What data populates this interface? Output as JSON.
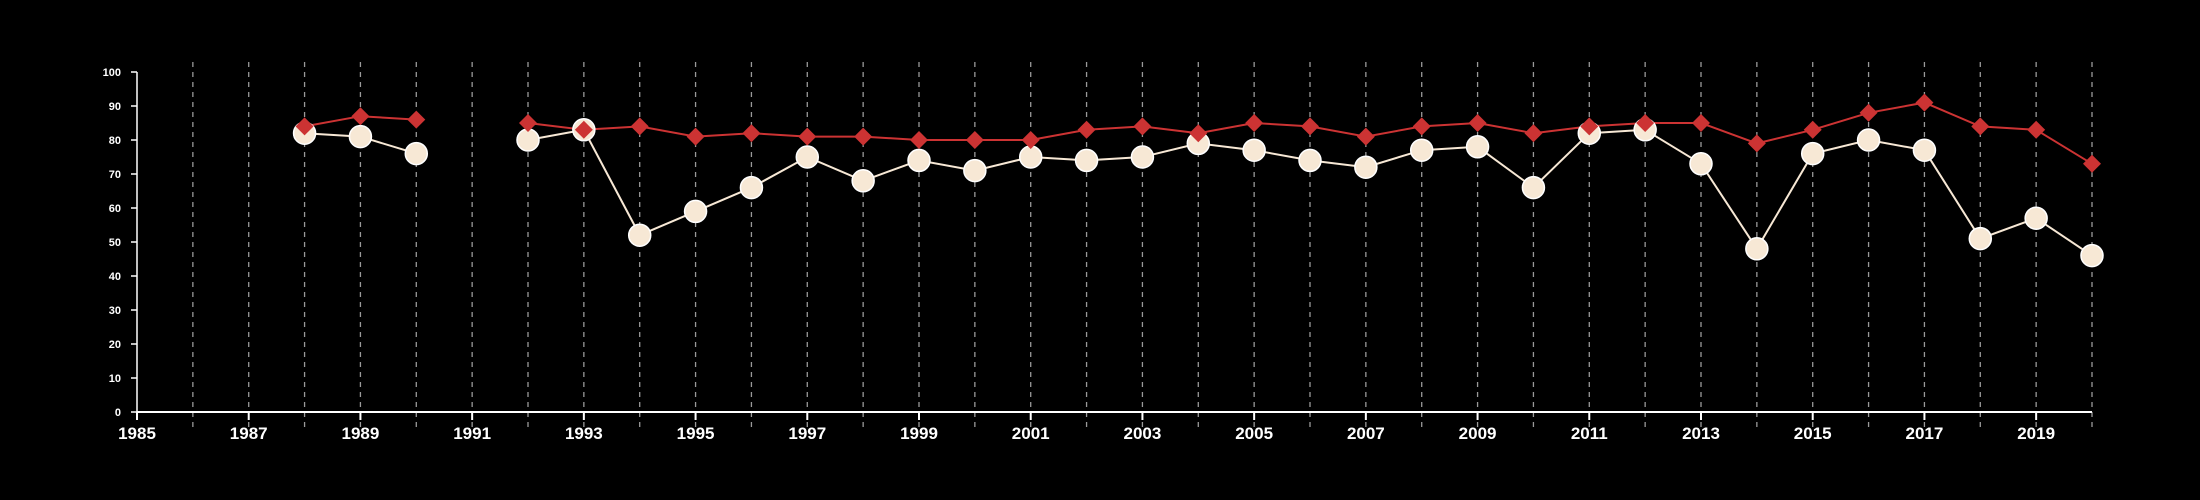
{
  "chart_data": {
    "type": "line",
    "title": "",
    "xlabel": "",
    "ylabel": "",
    "xlim": [
      1985,
      2020
    ],
    "ylim": [
      0,
      100
    ],
    "x_ticks": [
      "1985",
      "1987",
      "1989",
      "1991",
      "1993",
      "1995",
      "1997",
      "1999",
      "2001",
      "2003",
      "2005",
      "2007",
      "2009",
      "2011",
      "2013",
      "2015",
      "2017",
      "2019"
    ],
    "y_ticks": [
      "0",
      "10",
      "20",
      "30",
      "40",
      "50",
      "60",
      "70",
      "80",
      "90",
      "100"
    ],
    "vertical_gridlines": "dashed, every year",
    "legend": "none",
    "series": [
      {
        "marker": "circle",
        "color": "#f7e8d5",
        "line_color": "#f7e8d5",
        "points": [
          [
            1988,
            82
          ],
          [
            1989,
            81
          ],
          [
            1990,
            76
          ],
          [
            1991,
            null
          ],
          [
            1992,
            80
          ],
          [
            1993,
            83
          ],
          [
            1994,
            52
          ],
          [
            1995,
            59
          ],
          [
            1996,
            66
          ],
          [
            1997,
            75
          ],
          [
            1998,
            68
          ],
          [
            1999,
            74
          ],
          [
            2000,
            71
          ],
          [
            2001,
            75
          ],
          [
            2002,
            74
          ],
          [
            2003,
            75
          ],
          [
            2004,
            79
          ],
          [
            2005,
            77
          ],
          [
            2006,
            74
          ],
          [
            2007,
            72
          ],
          [
            2008,
            77
          ],
          [
            2009,
            78
          ],
          [
            2010,
            66
          ],
          [
            2011,
            82
          ],
          [
            2012,
            83
          ],
          [
            2013,
            73
          ],
          [
            2014,
            48
          ],
          [
            2015,
            76
          ],
          [
            2016,
            80
          ],
          [
            2017,
            77
          ],
          [
            2018,
            51
          ],
          [
            2019,
            57
          ],
          [
            2020,
            46
          ]
        ]
      },
      {
        "marker": "diamond",
        "color": "#cc3333",
        "line_color": "#cc3333",
        "points": [
          [
            1988,
            84
          ],
          [
            1989,
            87
          ],
          [
            1990,
            86
          ],
          [
            1991,
            null
          ],
          [
            1992,
            85
          ],
          [
            1993,
            83
          ],
          [
            1994,
            84
          ],
          [
            1995,
            81
          ],
          [
            1996,
            82
          ],
          [
            1997,
            81
          ],
          [
            1998,
            81
          ],
          [
            1999,
            80
          ],
          [
            2000,
            80
          ],
          [
            2001,
            80
          ],
          [
            2002,
            83
          ],
          [
            2003,
            84
          ],
          [
            2004,
            82
          ],
          [
            2005,
            85
          ],
          [
            2006,
            84
          ],
          [
            2007,
            81
          ],
          [
            2008,
            84
          ],
          [
            2009,
            85
          ],
          [
            2010,
            82
          ],
          [
            2011,
            84
          ],
          [
            2012,
            85
          ],
          [
            2013,
            85
          ],
          [
            2014,
            79
          ],
          [
            2015,
            83
          ],
          [
            2016,
            88
          ],
          [
            2017,
            91
          ],
          [
            2018,
            84
          ],
          [
            2019,
            83
          ],
          [
            2020,
            73
          ]
        ]
      }
    ]
  }
}
